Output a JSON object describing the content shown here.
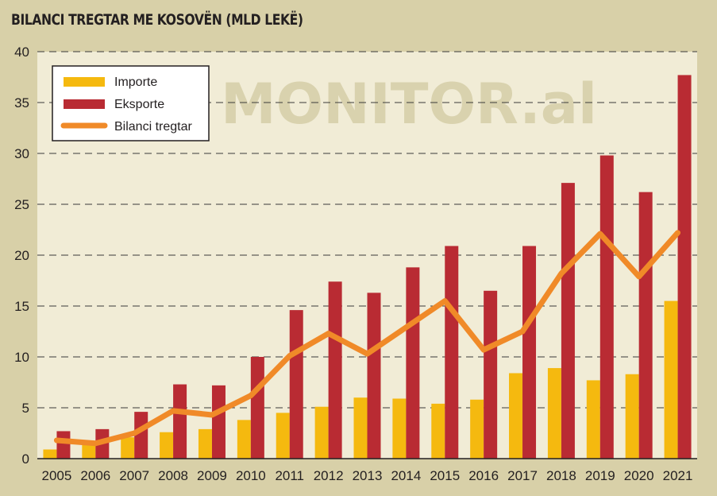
{
  "colors": {
    "background": "#d8d0a8",
    "plot_background": "#f1ecd6",
    "imports": "#f5b90f",
    "exports": "#b92b33",
    "balance": "#f08a28",
    "gridline": "#3a3a3a"
  },
  "watermark": "MONITOR.al",
  "chart_data": {
    "type": "bar",
    "title": "BILANCI TREGTAR ME KOSOVËN (MLD LEKË)",
    "categories": [
      "2005",
      "2006",
      "2007",
      "2008",
      "2009",
      "2010",
      "2011",
      "2012",
      "2013",
      "2014",
      "2015",
      "2016",
      "2017",
      "2018",
      "2019",
      "2020",
      "2021"
    ],
    "series": [
      {
        "name": "Importe",
        "type": "bar",
        "values": [
          0.9,
          1.4,
          2.1,
          2.6,
          2.9,
          3.8,
          4.5,
          5.1,
          6.0,
          5.9,
          5.4,
          5.8,
          8.4,
          8.9,
          7.7,
          8.3,
          15.5
        ]
      },
      {
        "name": "Eksporte",
        "type": "bar",
        "values": [
          2.7,
          2.9,
          4.6,
          7.3,
          7.2,
          10.0,
          14.6,
          17.4,
          16.3,
          18.8,
          20.9,
          16.5,
          20.9,
          27.1,
          29.8,
          26.2,
          37.7
        ]
      },
      {
        "name": "Bilanci tregtar",
        "type": "line",
        "values": [
          1.8,
          1.5,
          2.5,
          4.7,
          4.3,
          6.2,
          10.1,
          12.3,
          10.3,
          12.9,
          15.5,
          10.7,
          12.5,
          18.2,
          22.1,
          17.9,
          22.2
        ]
      }
    ],
    "ylim": [
      0,
      40
    ],
    "yticks": [
      0,
      5,
      10,
      15,
      20,
      25,
      30,
      35,
      40
    ],
    "grid": true,
    "legend_position": "top-left"
  }
}
